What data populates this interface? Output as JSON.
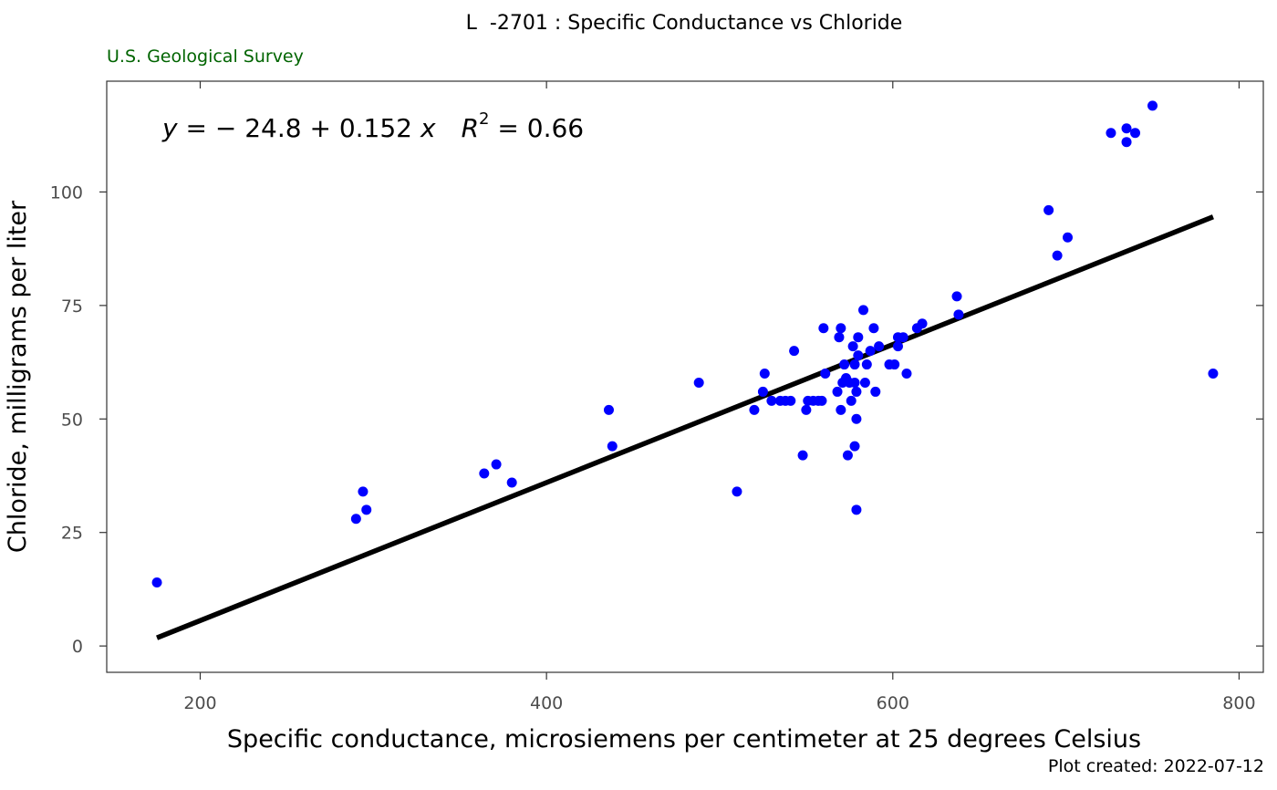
{
  "chart_data": {
    "type": "scatter",
    "title": "L  -2701 : Specific Conductance vs Chloride",
    "subtitle": "U.S. Geological Survey",
    "xlabel": "Specific conductance, microsiemens per centimeter at 25 degrees Celsius",
    "ylabel": "Chloride, milligrams per liter",
    "caption": "Plot created: 2022-07-12",
    "xlim": [
      146,
      814
    ],
    "ylim": [
      -5.8,
      124.4
    ],
    "x_ticks": [
      "200",
      "400",
      "600",
      "800"
    ],
    "y_ticks": [
      "0",
      "25",
      "50",
      "75",
      "100"
    ],
    "grid": false,
    "colors": {
      "points": "#0000ff",
      "line": "#000000",
      "subtitle": "#006400"
    },
    "equation": {
      "y": "y",
      "eq": " = ",
      "intercept": "− 24.8",
      "plus": " + ",
      "slope": "0.152",
      "x": "x",
      "r": "R",
      "two": "2",
      "r2": " = 0.66"
    },
    "fit": {
      "intercept": -24.8,
      "slope": 0.152,
      "x_start": 175,
      "x_end": 785
    },
    "points": [
      [
        175,
        14
      ],
      [
        290,
        28
      ],
      [
        294,
        34
      ],
      [
        296,
        30
      ],
      [
        364,
        38
      ],
      [
        371,
        40
      ],
      [
        380,
        36
      ],
      [
        436,
        52
      ],
      [
        438,
        44
      ],
      [
        488,
        58
      ],
      [
        510,
        34
      ],
      [
        520,
        52
      ],
      [
        525,
        56
      ],
      [
        526,
        60
      ],
      [
        530,
        54
      ],
      [
        535,
        54
      ],
      [
        538,
        54
      ],
      [
        541,
        54
      ],
      [
        543,
        65
      ],
      [
        548,
        42
      ],
      [
        550,
        52
      ],
      [
        551,
        54
      ],
      [
        554,
        54
      ],
      [
        557,
        54
      ],
      [
        559,
        54
      ],
      [
        560,
        70
      ],
      [
        561,
        60
      ],
      [
        568,
        56
      ],
      [
        569,
        68
      ],
      [
        570,
        70
      ],
      [
        570,
        52
      ],
      [
        571,
        58
      ],
      [
        572,
        62
      ],
      [
        573,
        59
      ],
      [
        574,
        42
      ],
      [
        575,
        58
      ],
      [
        576,
        54
      ],
      [
        577,
        66
      ],
      [
        578,
        62
      ],
      [
        578,
        44
      ],
      [
        578,
        58
      ],
      [
        579,
        30
      ],
      [
        579,
        56
      ],
      [
        579,
        50
      ],
      [
        580,
        64
      ],
      [
        580,
        68
      ],
      [
        583,
        74
      ],
      [
        584,
        58
      ],
      [
        585,
        62
      ],
      [
        587,
        65
      ],
      [
        589,
        70
      ],
      [
        590,
        56
      ],
      [
        592,
        66
      ],
      [
        598,
        62
      ],
      [
        601,
        62
      ],
      [
        603,
        66
      ],
      [
        603,
        68
      ],
      [
        606,
        68
      ],
      [
        608,
        60
      ],
      [
        614,
        70
      ],
      [
        617,
        71
      ],
      [
        637,
        77
      ],
      [
        638,
        73
      ],
      [
        690,
        96
      ],
      [
        695,
        86
      ],
      [
        701,
        90
      ],
      [
        726,
        113
      ],
      [
        735,
        111
      ],
      [
        735,
        114
      ],
      [
        740,
        113
      ],
      [
        750,
        119
      ],
      [
        785,
        60
      ]
    ]
  }
}
